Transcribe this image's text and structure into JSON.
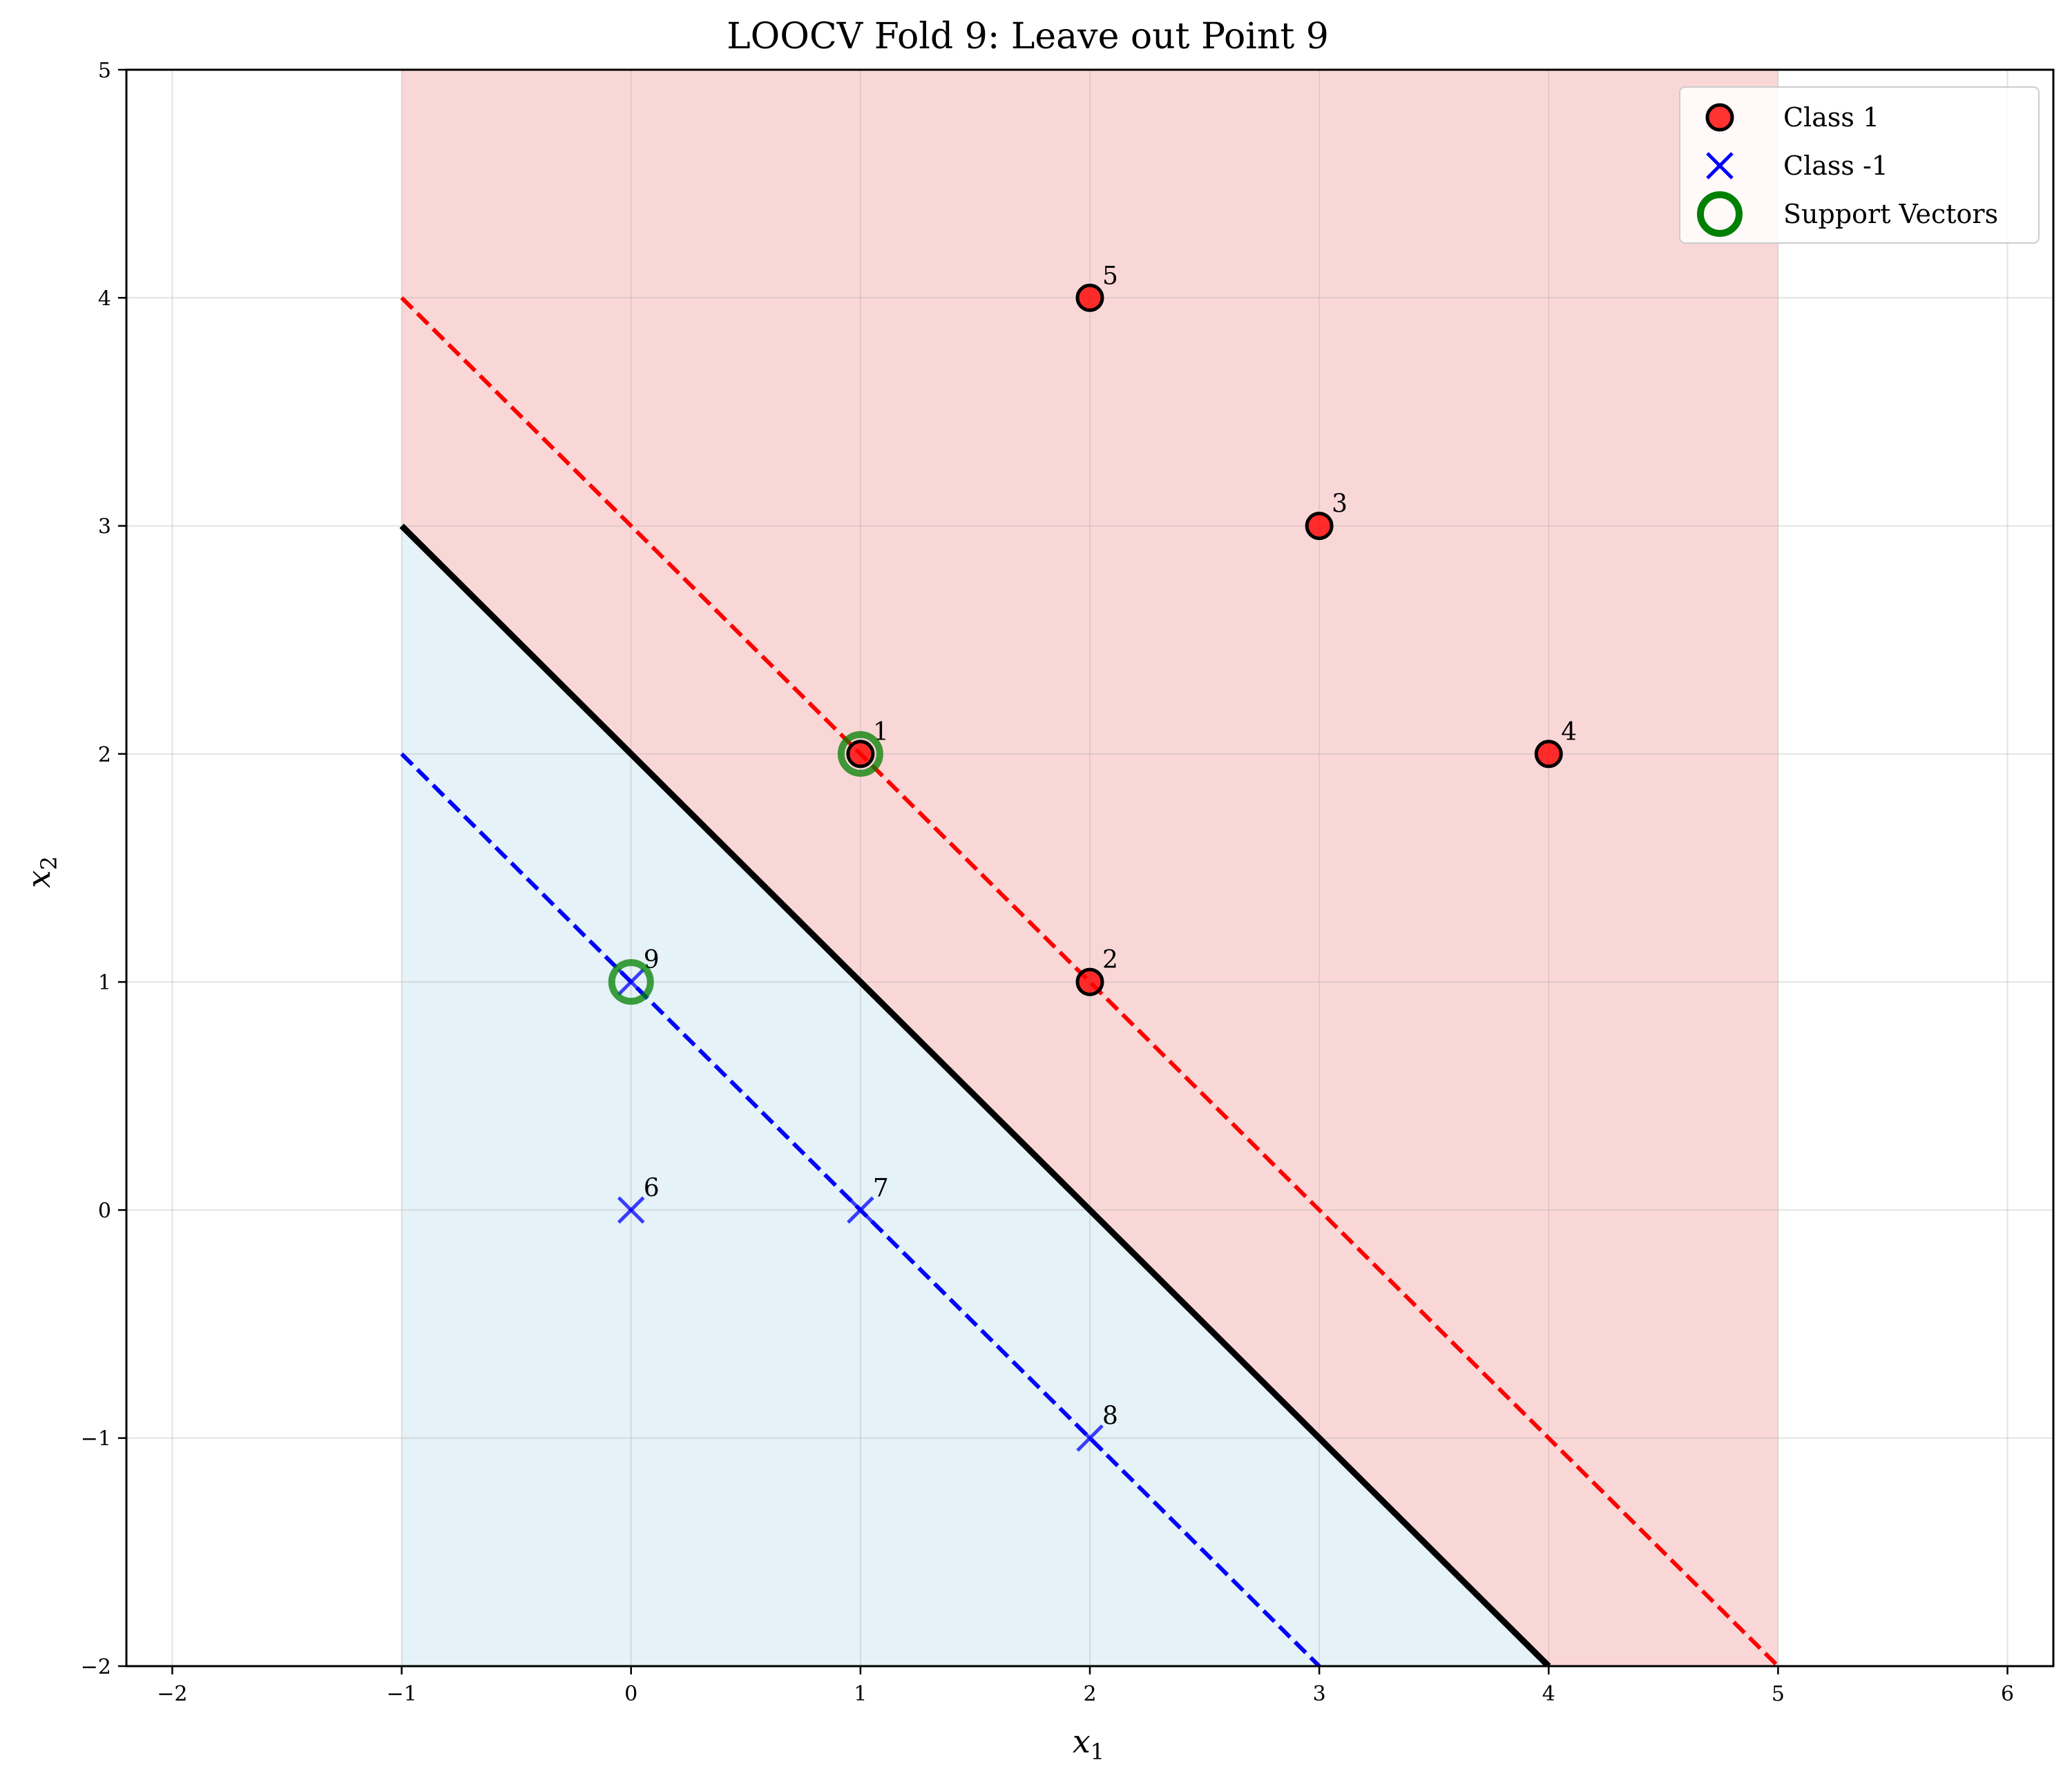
{
  "chart_data": {
    "type": "scatter",
    "title": "LOOCV Fold 9: Leave out Point 9",
    "xlabel": "x",
    "xlabel_sub": "1",
    "ylabel": "x",
    "ylabel_sub": "2",
    "xlim": [
      -2.2,
      6.2
    ],
    "ylim": [
      -2,
      5
    ],
    "xticks": [
      -2,
      -1,
      0,
      1,
      2,
      3,
      4,
      5,
      6
    ],
    "yticks": [
      -2,
      -1,
      0,
      1,
      2,
      3,
      4,
      5
    ],
    "grid": true,
    "legend_position": "top-right",
    "colors": {
      "class_pos": "#ff0000",
      "class_neg": "#0000ff",
      "support": "#008000",
      "region_pos": "#f4a6a6",
      "region_neg": "#add8e6",
      "boundary": "#000000"
    },
    "region_x_range": [
      -1,
      5
    ],
    "decision_boundary": {
      "x1_plus_x2": 2
    },
    "margin_positive": {
      "x1_plus_x2": 3
    },
    "margin_negative": {
      "x1_plus_x2": 1
    },
    "series": [
      {
        "name": "Class 1",
        "marker": "circle",
        "points": [
          {
            "id": "1",
            "x": 1,
            "y": 2
          },
          {
            "id": "2",
            "x": 2,
            "y": 1
          },
          {
            "id": "3",
            "x": 3,
            "y": 3
          },
          {
            "id": "4",
            "x": 4,
            "y": 2
          },
          {
            "id": "5",
            "x": 2,
            "y": 4
          }
        ]
      },
      {
        "name": "Class -1",
        "marker": "x",
        "points": [
          {
            "id": "6",
            "x": 0,
            "y": 0
          },
          {
            "id": "7",
            "x": 1,
            "y": 0
          },
          {
            "id": "8",
            "x": 2,
            "y": -1
          },
          {
            "id": "9",
            "x": 0,
            "y": 1
          }
        ]
      },
      {
        "name": "Support Vectors",
        "marker": "ring",
        "points": [
          {
            "x": 1,
            "y": 2
          },
          {
            "x": 0,
            "y": 1
          }
        ]
      }
    ],
    "legend": [
      "Class 1",
      "Class -1",
      "Support Vectors"
    ]
  }
}
